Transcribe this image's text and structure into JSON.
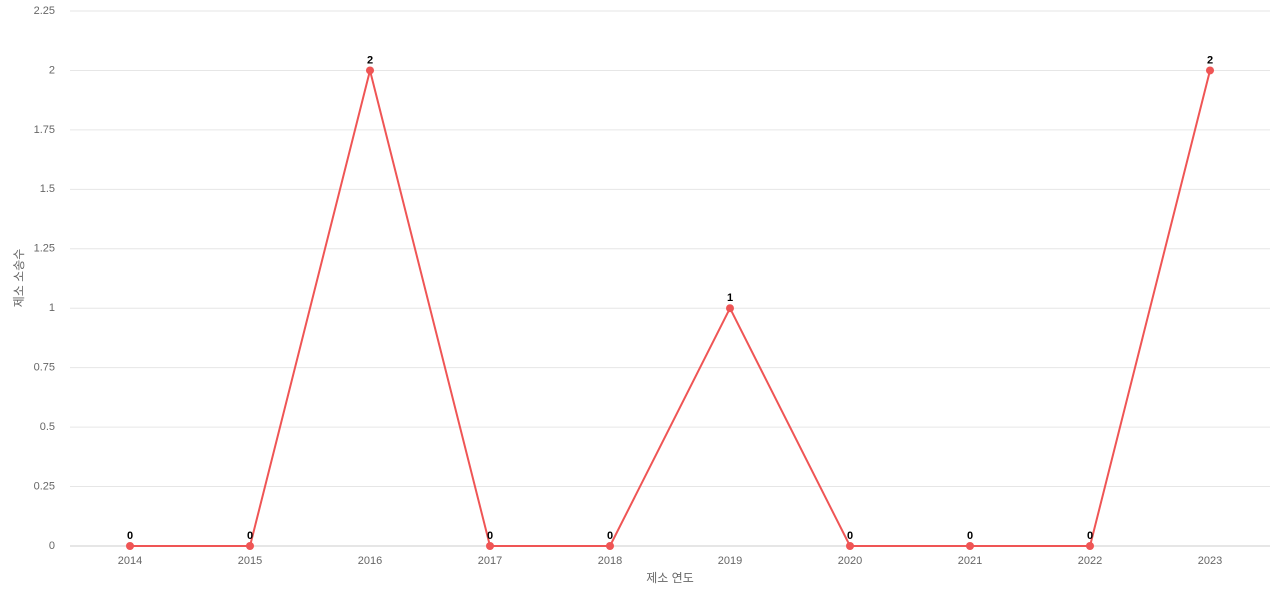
{
  "chart_data": {
    "type": "line",
    "x_label": "제소 연도",
    "y_label": "제소 소송수",
    "categories": [
      "2014",
      "2015",
      "2016",
      "2017",
      "2018",
      "2019",
      "2020",
      "2021",
      "2022",
      "2023"
    ],
    "values": [
      0,
      0,
      2,
      0,
      0,
      1,
      0,
      0,
      0,
      2
    ],
    "color": "#ef5555",
    "ylim": [
      0,
      2.25
    ],
    "yticks": [
      0,
      0.25,
      0.5,
      0.75,
      1,
      1.25,
      1.5,
      1.75,
      2,
      2.25
    ],
    "grid": true
  }
}
